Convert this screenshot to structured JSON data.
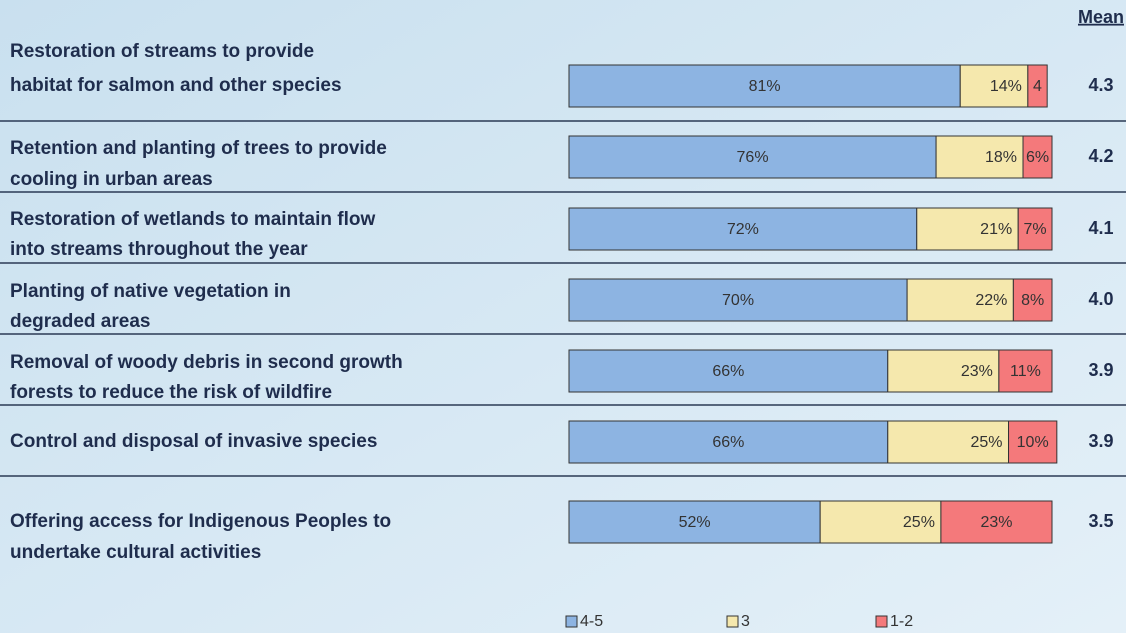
{
  "chart_data": {
    "type": "stacked-barh",
    "mean_header": "Mean",
    "categories": [
      [
        "Restoration of streams to provide",
        "habitat for salmon and other species"
      ],
      [
        "Retention and planting of trees to provide",
        "cooling in urban areas"
      ],
      [
        "Restoration of wetlands to maintain flow",
        "into streams throughout the year"
      ],
      [
        "Planting of native vegetation in",
        "degraded areas"
      ],
      [
        "Removal of woody debris in second growth",
        "forests to reduce the risk of wildfire"
      ],
      [
        "Control and disposal of invasive species"
      ],
      [
        "Offering access for Indigenous Peoples to",
        "undertake cultural activities"
      ]
    ],
    "series": [
      {
        "name": "4-5",
        "color": "#8db4e2",
        "values": [
          81,
          76,
          72,
          70,
          66,
          66,
          52
        ],
        "value_labels": [
          "81%",
          "76%",
          "72%",
          "70%",
          "66%",
          "66%",
          "52%"
        ]
      },
      {
        "name": "3",
        "color": "#f5e8ad",
        "values": [
          14,
          18,
          21,
          22,
          23,
          25,
          25
        ],
        "value_labels": [
          "14%",
          "18%",
          "21%",
          "22%",
          "23%",
          "25%",
          "25%"
        ]
      },
      {
        "name": "1-2",
        "color": "#f4797b",
        "values": [
          4,
          6,
          7,
          8,
          11,
          10,
          23
        ],
        "value_labels": [
          "4",
          "6%",
          "7%",
          "8%",
          "11%",
          "10%",
          "23%"
        ]
      }
    ],
    "means": [
      4.3,
      4.2,
      4.1,
      4.0,
      3.9,
      3.9,
      3.5
    ],
    "mean_labels": [
      "4.3",
      "4.2",
      "4.1",
      "4.0",
      "3.9",
      "3.9",
      "3.5"
    ],
    "xlim": [
      0,
      100
    ]
  }
}
